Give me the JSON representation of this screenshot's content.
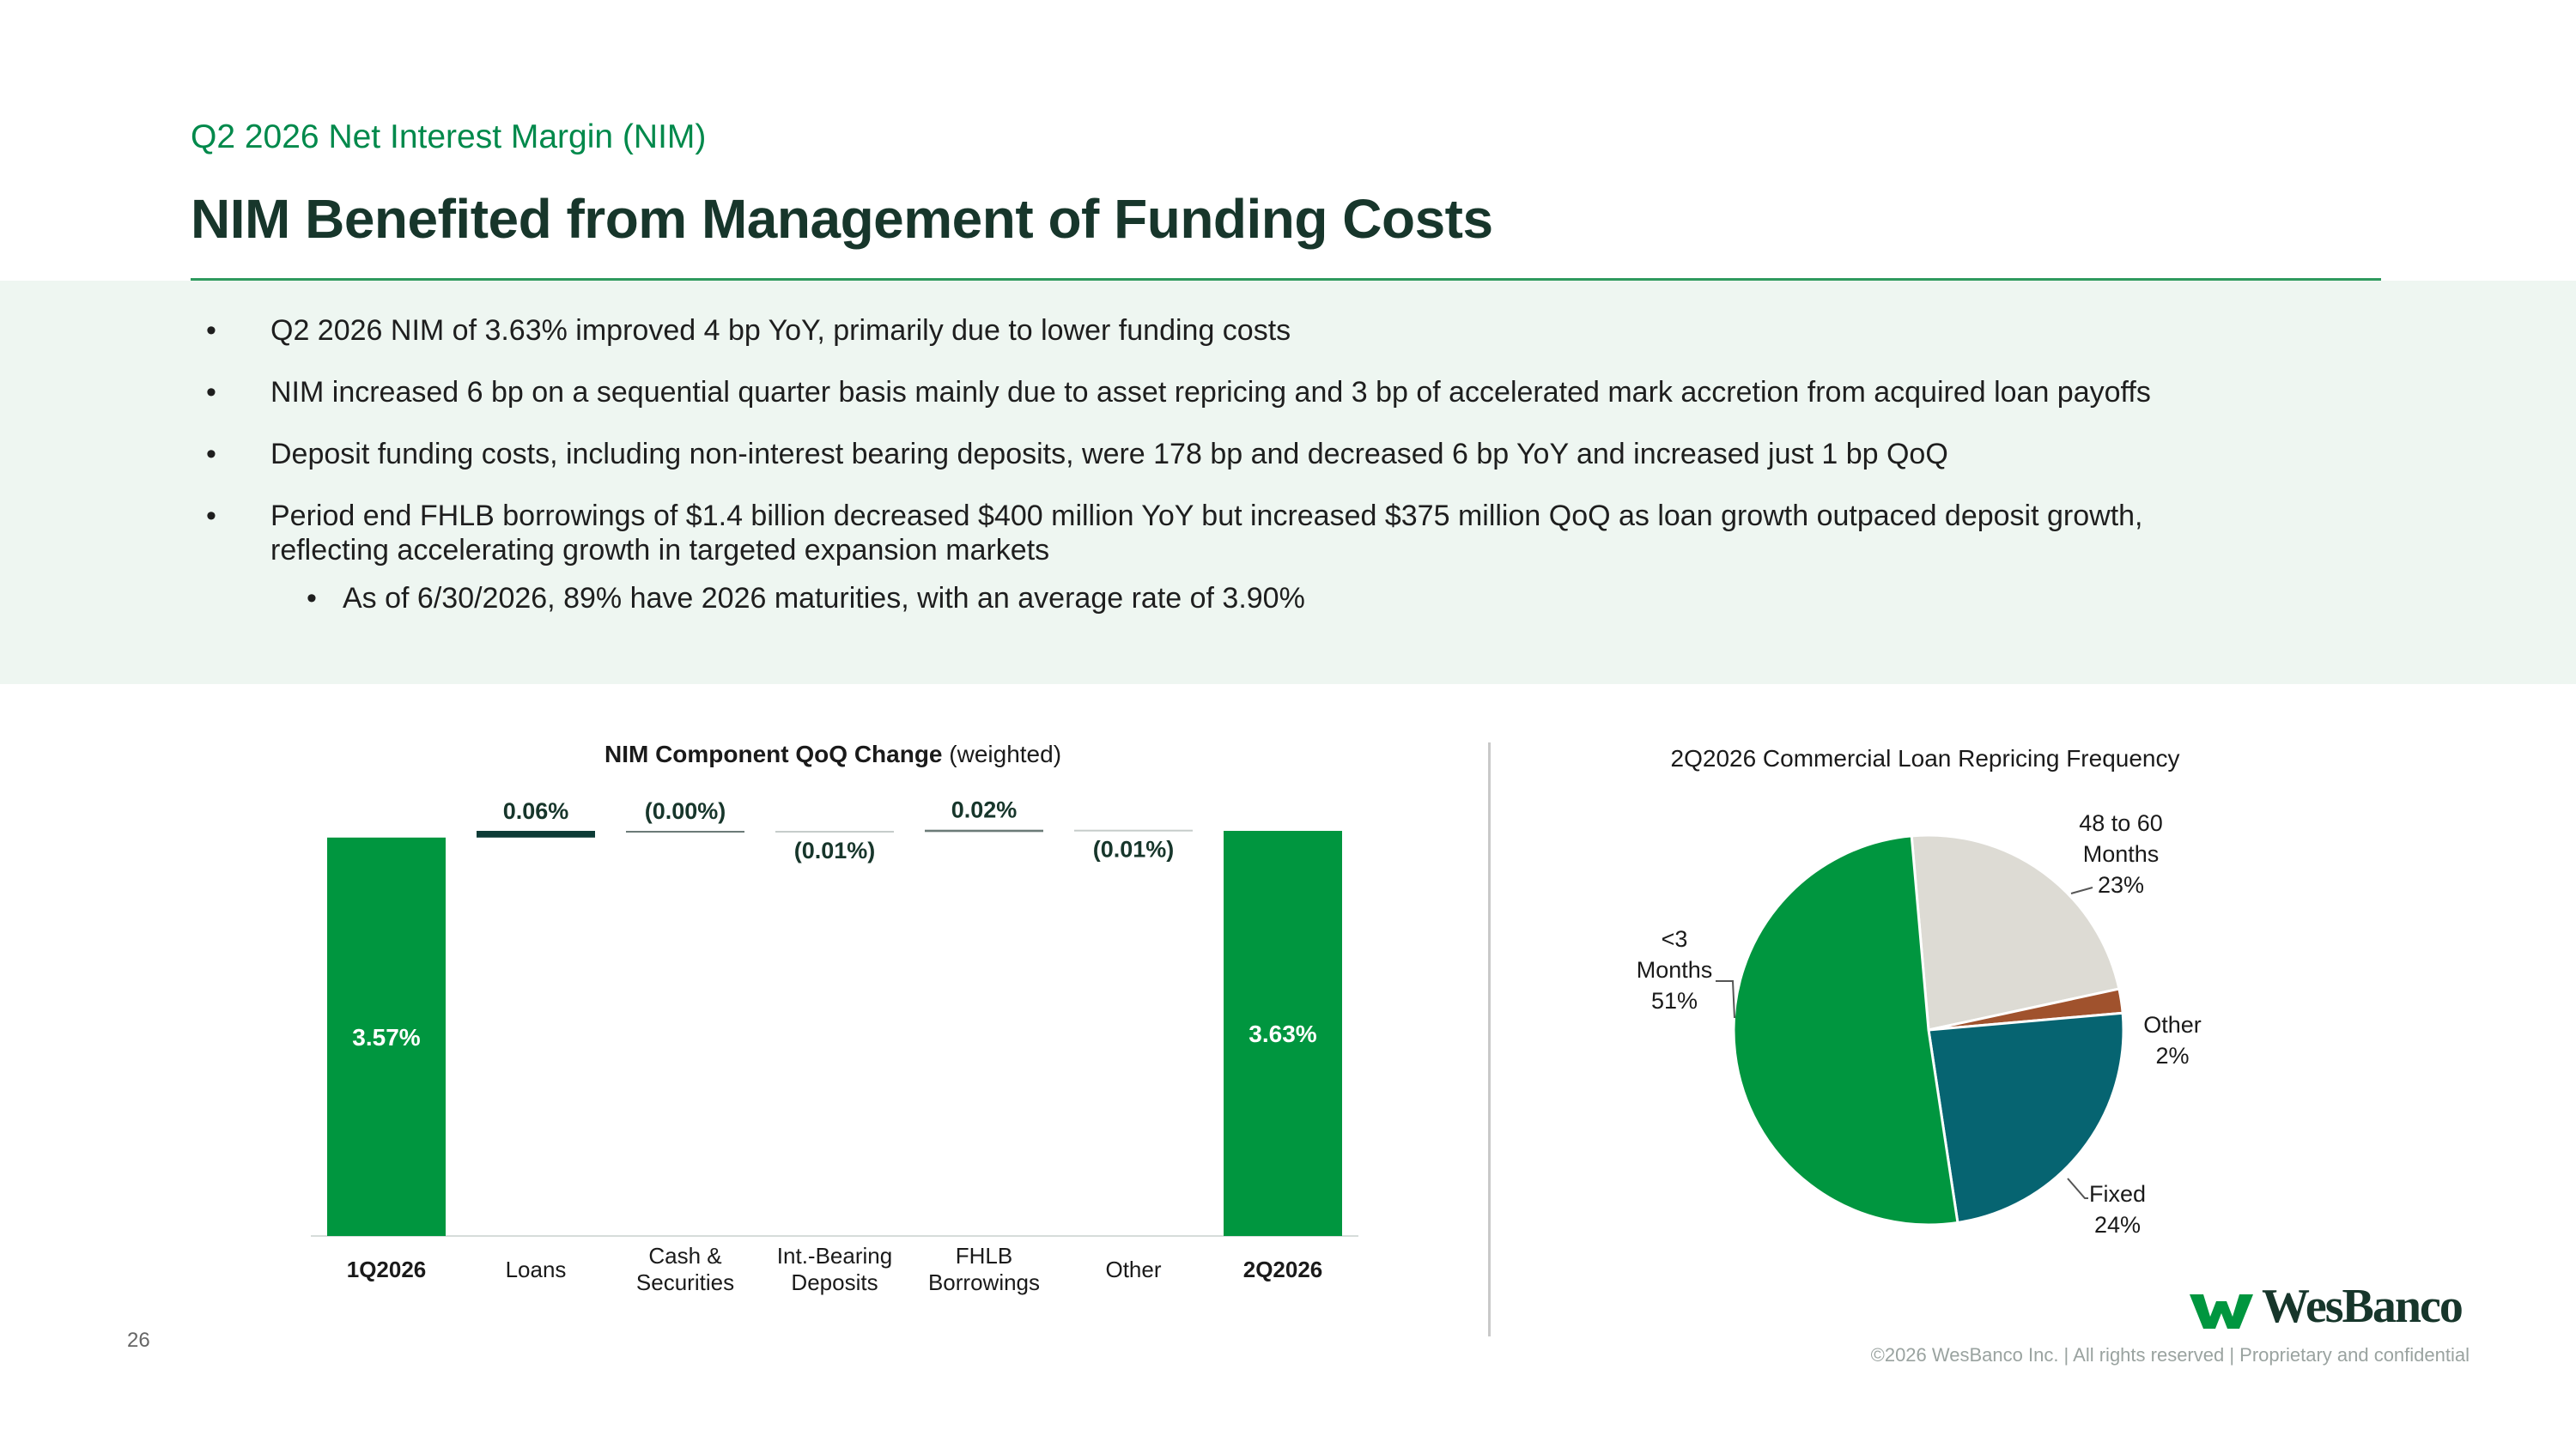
{
  "header": {
    "subtitle": "Q2 2026 Net Interest Margin (NIM)",
    "title": "NIM Benefited from Management of Funding Costs"
  },
  "bullets": [
    "Q2 2026 NIM of 3.63% improved 4 bp YoY, primarily due to lower funding costs",
    "NIM increased 6 bp on a sequential quarter basis mainly due to  asset repricing and 3 bp of accelerated mark accretion from acquired loan payoffs",
    "Deposit funding costs, including non-interest bearing deposits, were 178 bp and decreased 6 bp YoY and increased just 1 bp QoQ",
    "Period end FHLB  borrowings of $1.4 billion decreased $400 million YoY but increased $375 million QoQ as loan growth outpaced deposit growth,",
    "reflecting accelerating growth in targeted expansion markets"
  ],
  "sub_bullets": [
    "As of 6/30/2026, 89% have 2026 maturities, with an average rate of 3.90%"
  ],
  "chart_data": [
    {
      "type": "bar",
      "subtype": "waterfall",
      "title": "NIM Component QoQ Change",
      "title_suffix": "(weighted)",
      "categories": [
        "1Q2026",
        "Loans",
        "Cash & Securities",
        "Int.-Bearing Deposits",
        "FHLB Borrowings",
        "Other",
        "2Q2026"
      ],
      "category_lines": [
        [
          "1Q2026"
        ],
        [
          "Loans"
        ],
        [
          "Cash &",
          "Securities"
        ],
        [
          "Int.-Bearing",
          "Deposits"
        ],
        [
          "FHLB",
          "Borrowings"
        ],
        [
          "Other"
        ],
        [
          "2Q2026"
        ]
      ],
      "values": [
        3.57,
        0.06,
        0.0,
        -0.01,
        0.02,
        -0.01,
        3.63
      ],
      "labels": [
        "3.57%",
        "0.06%",
        "(0.00%)",
        "(0.01%)",
        "0.02%",
        "(0.01%)",
        "3.63%"
      ],
      "ylim": [
        0,
        3.7
      ],
      "colors": {
        "total": "#00963f",
        "change": "#0d3b36",
        "change_light": "#c6ccca"
      }
    },
    {
      "type": "pie",
      "title": "2Q2026 Commercial Loan Repricing Frequency",
      "slices": [
        {
          "label": "48 to 60 Months",
          "label_lines": [
            "48 to 60",
            "Months"
          ],
          "pct_label": "23%",
          "value": 23,
          "color": "#dddbd4"
        },
        {
          "label": "Other",
          "label_lines": [
            "Other"
          ],
          "pct_label": "2%",
          "value": 2,
          "color": "#a0522d"
        },
        {
          "label": "Fixed",
          "label_lines": [
            "Fixed"
          ],
          "pct_label": "24%",
          "value": 24,
          "color": "#066471"
        },
        {
          "label": "<3 Months",
          "label_lines": [
            "<3",
            "Months"
          ],
          "pct_label": "51%",
          "value": 51,
          "color": "#00963f"
        }
      ]
    }
  ],
  "footer": {
    "page_number": "26",
    "copyright": "©2026 WesBanco Inc.  |  All rights reserved  |  Proprietary and confidential",
    "logo_text": "WesBanco"
  },
  "colors": {
    "brand_green": "#00894b",
    "dark_green": "#17362b",
    "band": "#eef6f1"
  }
}
